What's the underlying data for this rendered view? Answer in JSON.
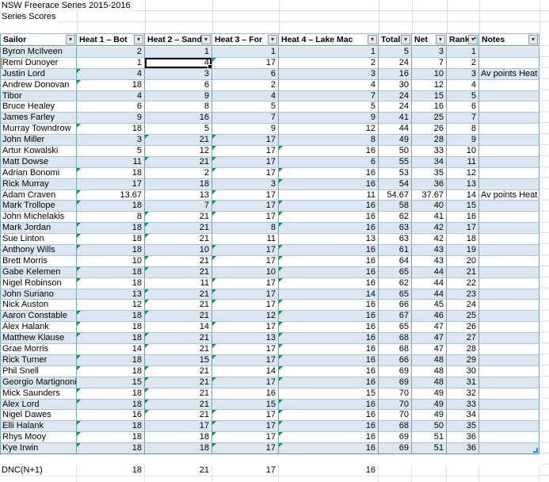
{
  "titles": {
    "main": "NSW Freerace Series 2015-2016",
    "sub": "Series Scores"
  },
  "selection": {
    "row_index": 1,
    "column": "h2"
  },
  "colors": {
    "band_blue": "#DCE6F1",
    "border_vertical": "#6FA3BE",
    "border_horizontal": "#A9C7DB",
    "gridline": "#D6DEEA",
    "error_flag_green": "#0E9648",
    "selection_border": "#000000",
    "row_indicator_orange": "#E49B4E",
    "resize_handle_blue": "#4A7EBB"
  },
  "table": {
    "columns": [
      {
        "key": "sailor",
        "label": "Sailor",
        "filter": "filter"
      },
      {
        "key": "h1",
        "label": "Heat 1 – Bot",
        "filter": "filter"
      },
      {
        "key": "h2",
        "label": "Heat 2 – Sand",
        "filter": "filter"
      },
      {
        "key": "h3",
        "label": "Heat 3 – For",
        "filter": "filter"
      },
      {
        "key": "h4",
        "label": "Heat 4 – Lake Mac",
        "filter": "filter"
      },
      {
        "key": "total",
        "label": "Total",
        "filter": "filter"
      },
      {
        "key": "net",
        "label": "Net",
        "filter": "filter"
      },
      {
        "key": "rank",
        "label": "Rank",
        "filter": "filter-sorted"
      },
      {
        "key": "notes",
        "label": "Notes",
        "filter": "filter"
      }
    ],
    "rows": [
      {
        "sailor": "Byron McIlveen",
        "h1": "2",
        "h2": "1",
        "h3": "1",
        "h4": "1",
        "total": "5",
        "net": "3",
        "rank": "1",
        "notes": "",
        "flags": []
      },
      {
        "sailor": "Remi Dunoyer",
        "h1": "1",
        "h2": "4",
        "h3": "17",
        "h4": "2",
        "total": "24",
        "net": "7",
        "rank": "2",
        "notes": "",
        "flags": [
          "h3"
        ]
      },
      {
        "sailor": "Justin Lord",
        "h1": "4",
        "h2": "3",
        "h3": "6",
        "h4": "3",
        "total": "16",
        "net": "10",
        "rank": "3",
        "notes": "Av points Heat 1",
        "flags": [
          "h1"
        ]
      },
      {
        "sailor": "Andrew Donovan",
        "h1": "18",
        "h2": "6",
        "h3": "2",
        "h4": "4",
        "total": "30",
        "net": "12",
        "rank": "4",
        "notes": "",
        "flags": [
          "h1"
        ]
      },
      {
        "sailor": "Tibor",
        "h1": "4",
        "h2": "9",
        "h3": "4",
        "h4": "7",
        "total": "24",
        "net": "15",
        "rank": "5",
        "notes": "",
        "flags": []
      },
      {
        "sailor": "Bruce Healey",
        "h1": "6",
        "h2": "8",
        "h3": "5",
        "h4": "5",
        "total": "24",
        "net": "16",
        "rank": "6",
        "notes": "",
        "flags": []
      },
      {
        "sailor": "James Farley",
        "h1": "9",
        "h2": "16",
        "h3": "7",
        "h4": "9",
        "total": "41",
        "net": "25",
        "rank": "7",
        "notes": "",
        "flags": []
      },
      {
        "sailor": "Murray Towndrow",
        "h1": "18",
        "h2": "5",
        "h3": "9",
        "h4": "12",
        "total": "44",
        "net": "26",
        "rank": "8",
        "notes": "",
        "flags": [
          "h1"
        ]
      },
      {
        "sailor": "John Miller",
        "h1": "3",
        "h2": "21",
        "h3": "17",
        "h4": "8",
        "total": "49",
        "net": "28",
        "rank": "9",
        "notes": "",
        "flags": [
          "h2",
          "h3"
        ]
      },
      {
        "sailor": "Artur Kowalski",
        "h1": "5",
        "h2": "12",
        "h3": "17",
        "h4": "16",
        "total": "50",
        "net": "33",
        "rank": "10",
        "notes": "",
        "flags": [
          "h3",
          "h4"
        ]
      },
      {
        "sailor": "Matt Dowse",
        "h1": "11",
        "h2": "21",
        "h3": "17",
        "h4": "6",
        "total": "55",
        "net": "34",
        "rank": "11",
        "notes": "",
        "flags": [
          "h2",
          "h3"
        ]
      },
      {
        "sailor": "Adrian Bonomi",
        "h1": "18",
        "h2": "2",
        "h3": "17",
        "h4": "16",
        "total": "53",
        "net": "35",
        "rank": "12",
        "notes": "",
        "flags": [
          "h1",
          "h3",
          "h4"
        ]
      },
      {
        "sailor": "Rick Murray",
        "h1": "17",
        "h2": "18",
        "h3": "3",
        "h4": "16",
        "total": "54",
        "net": "36",
        "rank": "13",
        "notes": "",
        "flags": [
          "h4"
        ]
      },
      {
        "sailor": "Adam Craven",
        "h1": "13.67",
        "h2": "13",
        "h3": "17",
        "h4": "11",
        "total": "54.67",
        "net": "37.67",
        "rank": "14",
        "notes": "Av points Heat 1",
        "flags": [
          "h1",
          "h3"
        ]
      },
      {
        "sailor": "Mark Trollope",
        "h1": "18",
        "h2": "7",
        "h3": "17",
        "h4": "16",
        "total": "58",
        "net": "40",
        "rank": "15",
        "notes": "",
        "flags": [
          "h1",
          "h3",
          "h4"
        ]
      },
      {
        "sailor": "John Michelakis",
        "h1": "8",
        "h2": "21",
        "h3": "17",
        "h4": "16",
        "total": "62",
        "net": "41",
        "rank": "16",
        "notes": "",
        "flags": [
          "h2",
          "h3",
          "h4"
        ]
      },
      {
        "sailor": "Mark Jordan",
        "h1": "18",
        "h2": "21",
        "h3": "8",
        "h4": "16",
        "total": "63",
        "net": "42",
        "rank": "17",
        "notes": "",
        "flags": [
          "h1",
          "h2",
          "h4"
        ]
      },
      {
        "sailor": "Sue Linton",
        "h1": "18",
        "h2": "21",
        "h3": "11",
        "h4": "13",
        "total": "63",
        "net": "42",
        "rank": "18",
        "notes": "",
        "flags": [
          "h1",
          "h2"
        ]
      },
      {
        "sailor": "Anthony Wills",
        "h1": "18",
        "h2": "10",
        "h3": "17",
        "h4": "16",
        "total": "61",
        "net": "43",
        "rank": "19",
        "notes": "",
        "flags": [
          "h1",
          "h3",
          "h4"
        ]
      },
      {
        "sailor": "Brett Morris",
        "h1": "10",
        "h2": "21",
        "h3": "17",
        "h4": "16",
        "total": "64",
        "net": "43",
        "rank": "20",
        "notes": "",
        "flags": [
          "h2",
          "h3",
          "h4"
        ]
      },
      {
        "sailor": "Gabe Kelemen",
        "h1": "18",
        "h2": "21",
        "h3": "10",
        "h4": "16",
        "total": "65",
        "net": "44",
        "rank": "21",
        "notes": "",
        "flags": [
          "h1",
          "h2",
          "h4"
        ]
      },
      {
        "sailor": "Nigel Robinson",
        "h1": "18",
        "h2": "11",
        "h3": "17",
        "h4": "16",
        "total": "62",
        "net": "44",
        "rank": "22",
        "notes": "",
        "flags": [
          "h1",
          "h3",
          "h4"
        ]
      },
      {
        "sailor": "John Suriano",
        "h1": "13",
        "h2": "21",
        "h3": "17",
        "h4": "14",
        "total": "65",
        "net": "44",
        "rank": "23",
        "notes": "",
        "flags": [
          "h2",
          "h3"
        ]
      },
      {
        "sailor": "Nick Auston",
        "h1": "12",
        "h2": "21",
        "h3": "17",
        "h4": "16",
        "total": "66",
        "net": "45",
        "rank": "24",
        "notes": "",
        "flags": [
          "h2",
          "h3",
          "h4"
        ]
      },
      {
        "sailor": "Aaron Constable",
        "h1": "18",
        "h2": "21",
        "h3": "12",
        "h4": "16",
        "total": "67",
        "net": "46",
        "rank": "25",
        "notes": "",
        "flags": [
          "h1",
          "h2",
          "h4"
        ]
      },
      {
        "sailor": "Alex Halank",
        "h1": "18",
        "h2": "14",
        "h3": "17",
        "h4": "16",
        "total": "65",
        "net": "47",
        "rank": "26",
        "notes": "",
        "flags": [
          "h1",
          "h3",
          "h4"
        ]
      },
      {
        "sailor": "Matthew Klause",
        "h1": "18",
        "h2": "21",
        "h3": "13",
        "h4": "16",
        "total": "68",
        "net": "47",
        "rank": "27",
        "notes": "",
        "flags": [
          "h1",
          "h2",
          "h4"
        ]
      },
      {
        "sailor": "Grae Morris",
        "h1": "14",
        "h2": "21",
        "h3": "17",
        "h4": "16",
        "total": "68",
        "net": "47",
        "rank": "28",
        "notes": "",
        "flags": [
          "h2",
          "h3",
          "h4"
        ]
      },
      {
        "sailor": "Rick Turner",
        "h1": "18",
        "h2": "15",
        "h3": "17",
        "h4": "16",
        "total": "66",
        "net": "48",
        "rank": "29",
        "notes": "",
        "flags": [
          "h1",
          "h3",
          "h4"
        ]
      },
      {
        "sailor": "Phil Snell",
        "h1": "18",
        "h2": "21",
        "h3": "14",
        "h4": "16",
        "total": "69",
        "net": "48",
        "rank": "30",
        "notes": "",
        "flags": [
          "h1",
          "h2",
          "h4"
        ]
      },
      {
        "sailor": "Georgio Martignoni",
        "h1": "15",
        "h2": "21",
        "h3": "17",
        "h4": "16",
        "total": "69",
        "net": "48",
        "rank": "31",
        "notes": "",
        "flags": [
          "h2",
          "h3",
          "h4"
        ]
      },
      {
        "sailor": "Mick Saunders",
        "h1": "18",
        "h2": "21",
        "h3": "16",
        "h4": "15",
        "total": "70",
        "net": "49",
        "rank": "32",
        "notes": "",
        "flags": [
          "h1",
          "h2"
        ]
      },
      {
        "sailor": "Alex Lord",
        "h1": "18",
        "h2": "21",
        "h3": "15",
        "h4": "16",
        "total": "70",
        "net": "49",
        "rank": "33",
        "notes": "",
        "flags": [
          "h1",
          "h2",
          "h4"
        ]
      },
      {
        "sailor": "Nigel Dawes",
        "h1": "16",
        "h2": "21",
        "h3": "17",
        "h4": "16",
        "total": "70",
        "net": "49",
        "rank": "34",
        "notes": "",
        "flags": [
          "h2",
          "h3",
          "h4"
        ]
      },
      {
        "sailor": "Elli Halank",
        "h1": "18",
        "h2": "17",
        "h3": "17",
        "h4": "16",
        "total": "68",
        "net": "50",
        "rank": "35",
        "notes": "",
        "flags": [
          "h1",
          "h3",
          "h4"
        ]
      },
      {
        "sailor": "Rhys Mooy",
        "h1": "18",
        "h2": "18",
        "h3": "17",
        "h4": "16",
        "total": "69",
        "net": "51",
        "rank": "36",
        "notes": "",
        "flags": [
          "h1",
          "h3",
          "h4"
        ]
      },
      {
        "sailor": "Kye Irwin",
        "h1": "18",
        "h2": "18",
        "h3": "17",
        "h4": "16",
        "total": "69",
        "net": "51",
        "rank": "36",
        "notes": "",
        "flags": [
          "h1",
          "h3",
          "h4"
        ]
      }
    ],
    "footer": {
      "label": "DNC(N+1)",
      "h1": "18",
      "h2": "21",
      "h3": "17",
      "h4": "16",
      "total": "",
      "net": "",
      "rank": "",
      "notes": ""
    }
  }
}
